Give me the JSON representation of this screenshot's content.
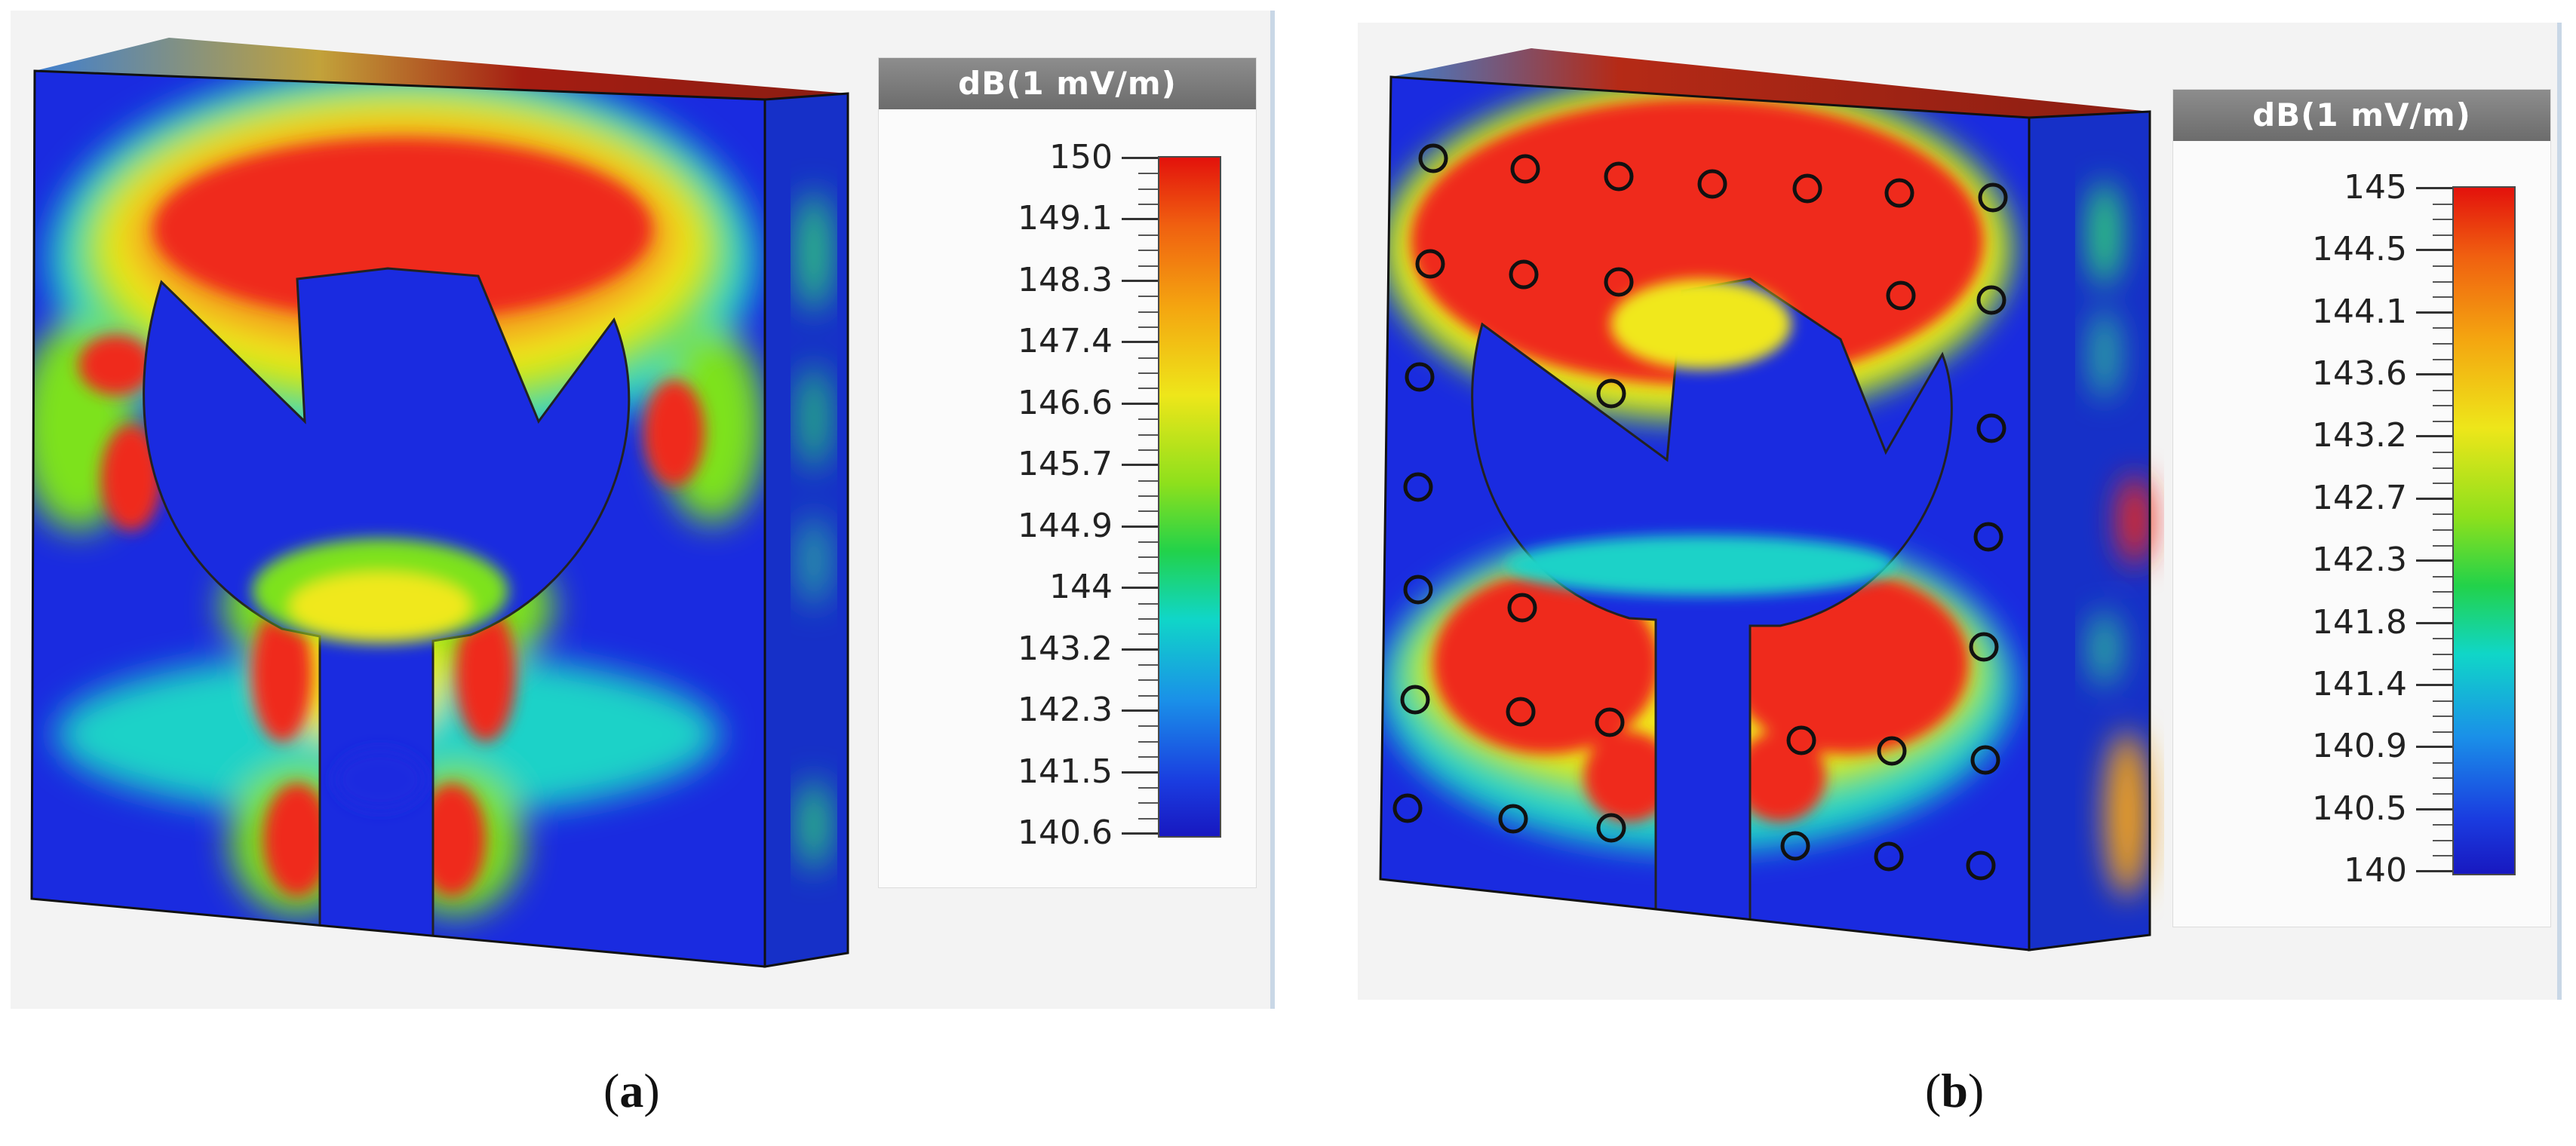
{
  "panels": [
    {
      "id": "a",
      "legend_title": "dB(1 mV/m)",
      "ticks": [
        "150",
        "149.1",
        "148.3",
        "147.4",
        "146.6",
        "145.7",
        "144.9",
        "144",
        "143.2",
        "142.3",
        "141.5",
        "140.6"
      ],
      "caption": "a"
    },
    {
      "id": "b",
      "legend_title": "dB(1 mV/m)",
      "ticks": [
        "145",
        "144.5",
        "144.1",
        "143.6",
        "143.2",
        "142.7",
        "142.3",
        "141.8",
        "141.4",
        "140.9",
        "140.5",
        "140"
      ],
      "caption": "b"
    }
  ],
  "colors": {
    "field_low": "#1a2be0",
    "field_high": "#ef2a1f",
    "mid": "#7de21c",
    "accent": "#f0e81a"
  }
}
